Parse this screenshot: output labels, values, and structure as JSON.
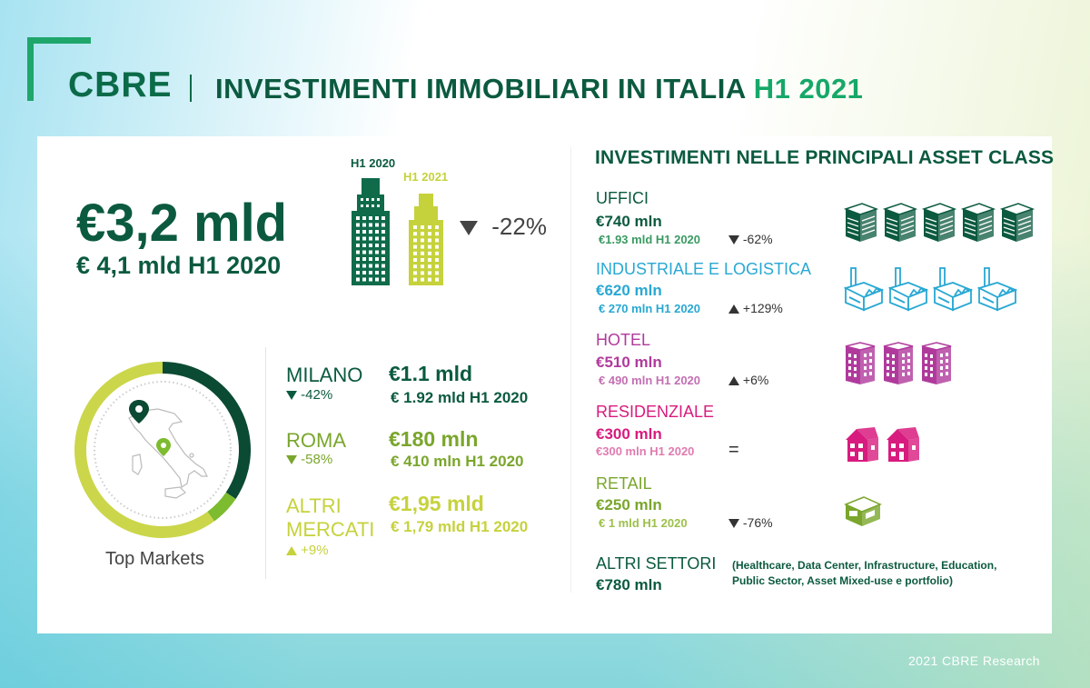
{
  "header": {
    "logo": "CBRE",
    "title_main": "INVESTIMENTI IMMOBILIARI IN ITALIA",
    "title_accent": "H1 2021"
  },
  "total": {
    "value": "€3,2 mld",
    "previous": "€ 4,1 mld H1 2020",
    "label_2020": "H1 2020",
    "label_2021": "H1 2021",
    "change": "-22%",
    "change_direction": "down"
  },
  "top_markets": {
    "label": "Top Markets",
    "donut_shares": {
      "milano": 0.344,
      "roma": 0.056,
      "altri": 0.6
    },
    "colors": {
      "milano": "#0b4a33",
      "roma": "#7dbb2f",
      "altri": "#cbd64a"
    },
    "markets": [
      {
        "name": "MILANO",
        "delta": "-42%",
        "direction": "down",
        "value": "€1.1 mld",
        "previous": "€ 1.92 mld H1 2020"
      },
      {
        "name": "ROMA",
        "delta": "-58%",
        "direction": "down",
        "value": "€180 mln",
        "previous": "€ 410 mln H1 2020"
      },
      {
        "name_line1": "ALTRI",
        "name_line2": "MERCATI",
        "delta": "+9%",
        "direction": "up",
        "value": "€1,95 mld",
        "previous": "€ 1,79 mld H1 2020"
      }
    ]
  },
  "asset_classes": {
    "title": "INVESTIMENTI NELLE PRINCIPALI ASSET CLASS",
    "items": [
      {
        "name": "UFFICI",
        "value": "€740 mln",
        "previous": "€1.93 mld H1 2020",
        "delta": "-62%",
        "direction": "down",
        "icon": "office-building-icon",
        "icon_count": 5,
        "color": "#0b5a3f"
      },
      {
        "name": "INDUSTRIALE E LOGISTICA",
        "value": "€620 mln",
        "previous": "€ 270 mln H1 2020",
        "delta": "+129%",
        "direction": "up",
        "icon": "factory-icon",
        "icon_count": 4,
        "color": "#29a8d3"
      },
      {
        "name": "HOTEL",
        "value": "€510 mln",
        "previous": "€ 490 mln H1 2020",
        "delta": "+6%",
        "direction": "up",
        "icon": "hotel-icon",
        "icon_count": 3,
        "color": "#b03a9c"
      },
      {
        "name": "RESIDENZIALE",
        "value": "€300 mln",
        "previous": "€300 mln H1 2020",
        "delta": "=",
        "direction": "equal",
        "icon": "house-icon",
        "icon_count": 2,
        "color": "#d81b7e"
      },
      {
        "name": "RETAIL",
        "value": "€250 mln",
        "previous": "€ 1 mld H1 2020",
        "delta": "-76%",
        "direction": "down",
        "icon": "shop-icon",
        "icon_count": 1,
        "color": "#7aa62c"
      }
    ],
    "other": {
      "name": "ALTRI SETTORI",
      "value": "€780 mln",
      "note": "(Healthcare, Data Center, Infrastructure, Education, Public Sector, Asset Mixed-use e portfolio)"
    }
  },
  "footer": {
    "text": "2021 CBRE Research"
  }
}
